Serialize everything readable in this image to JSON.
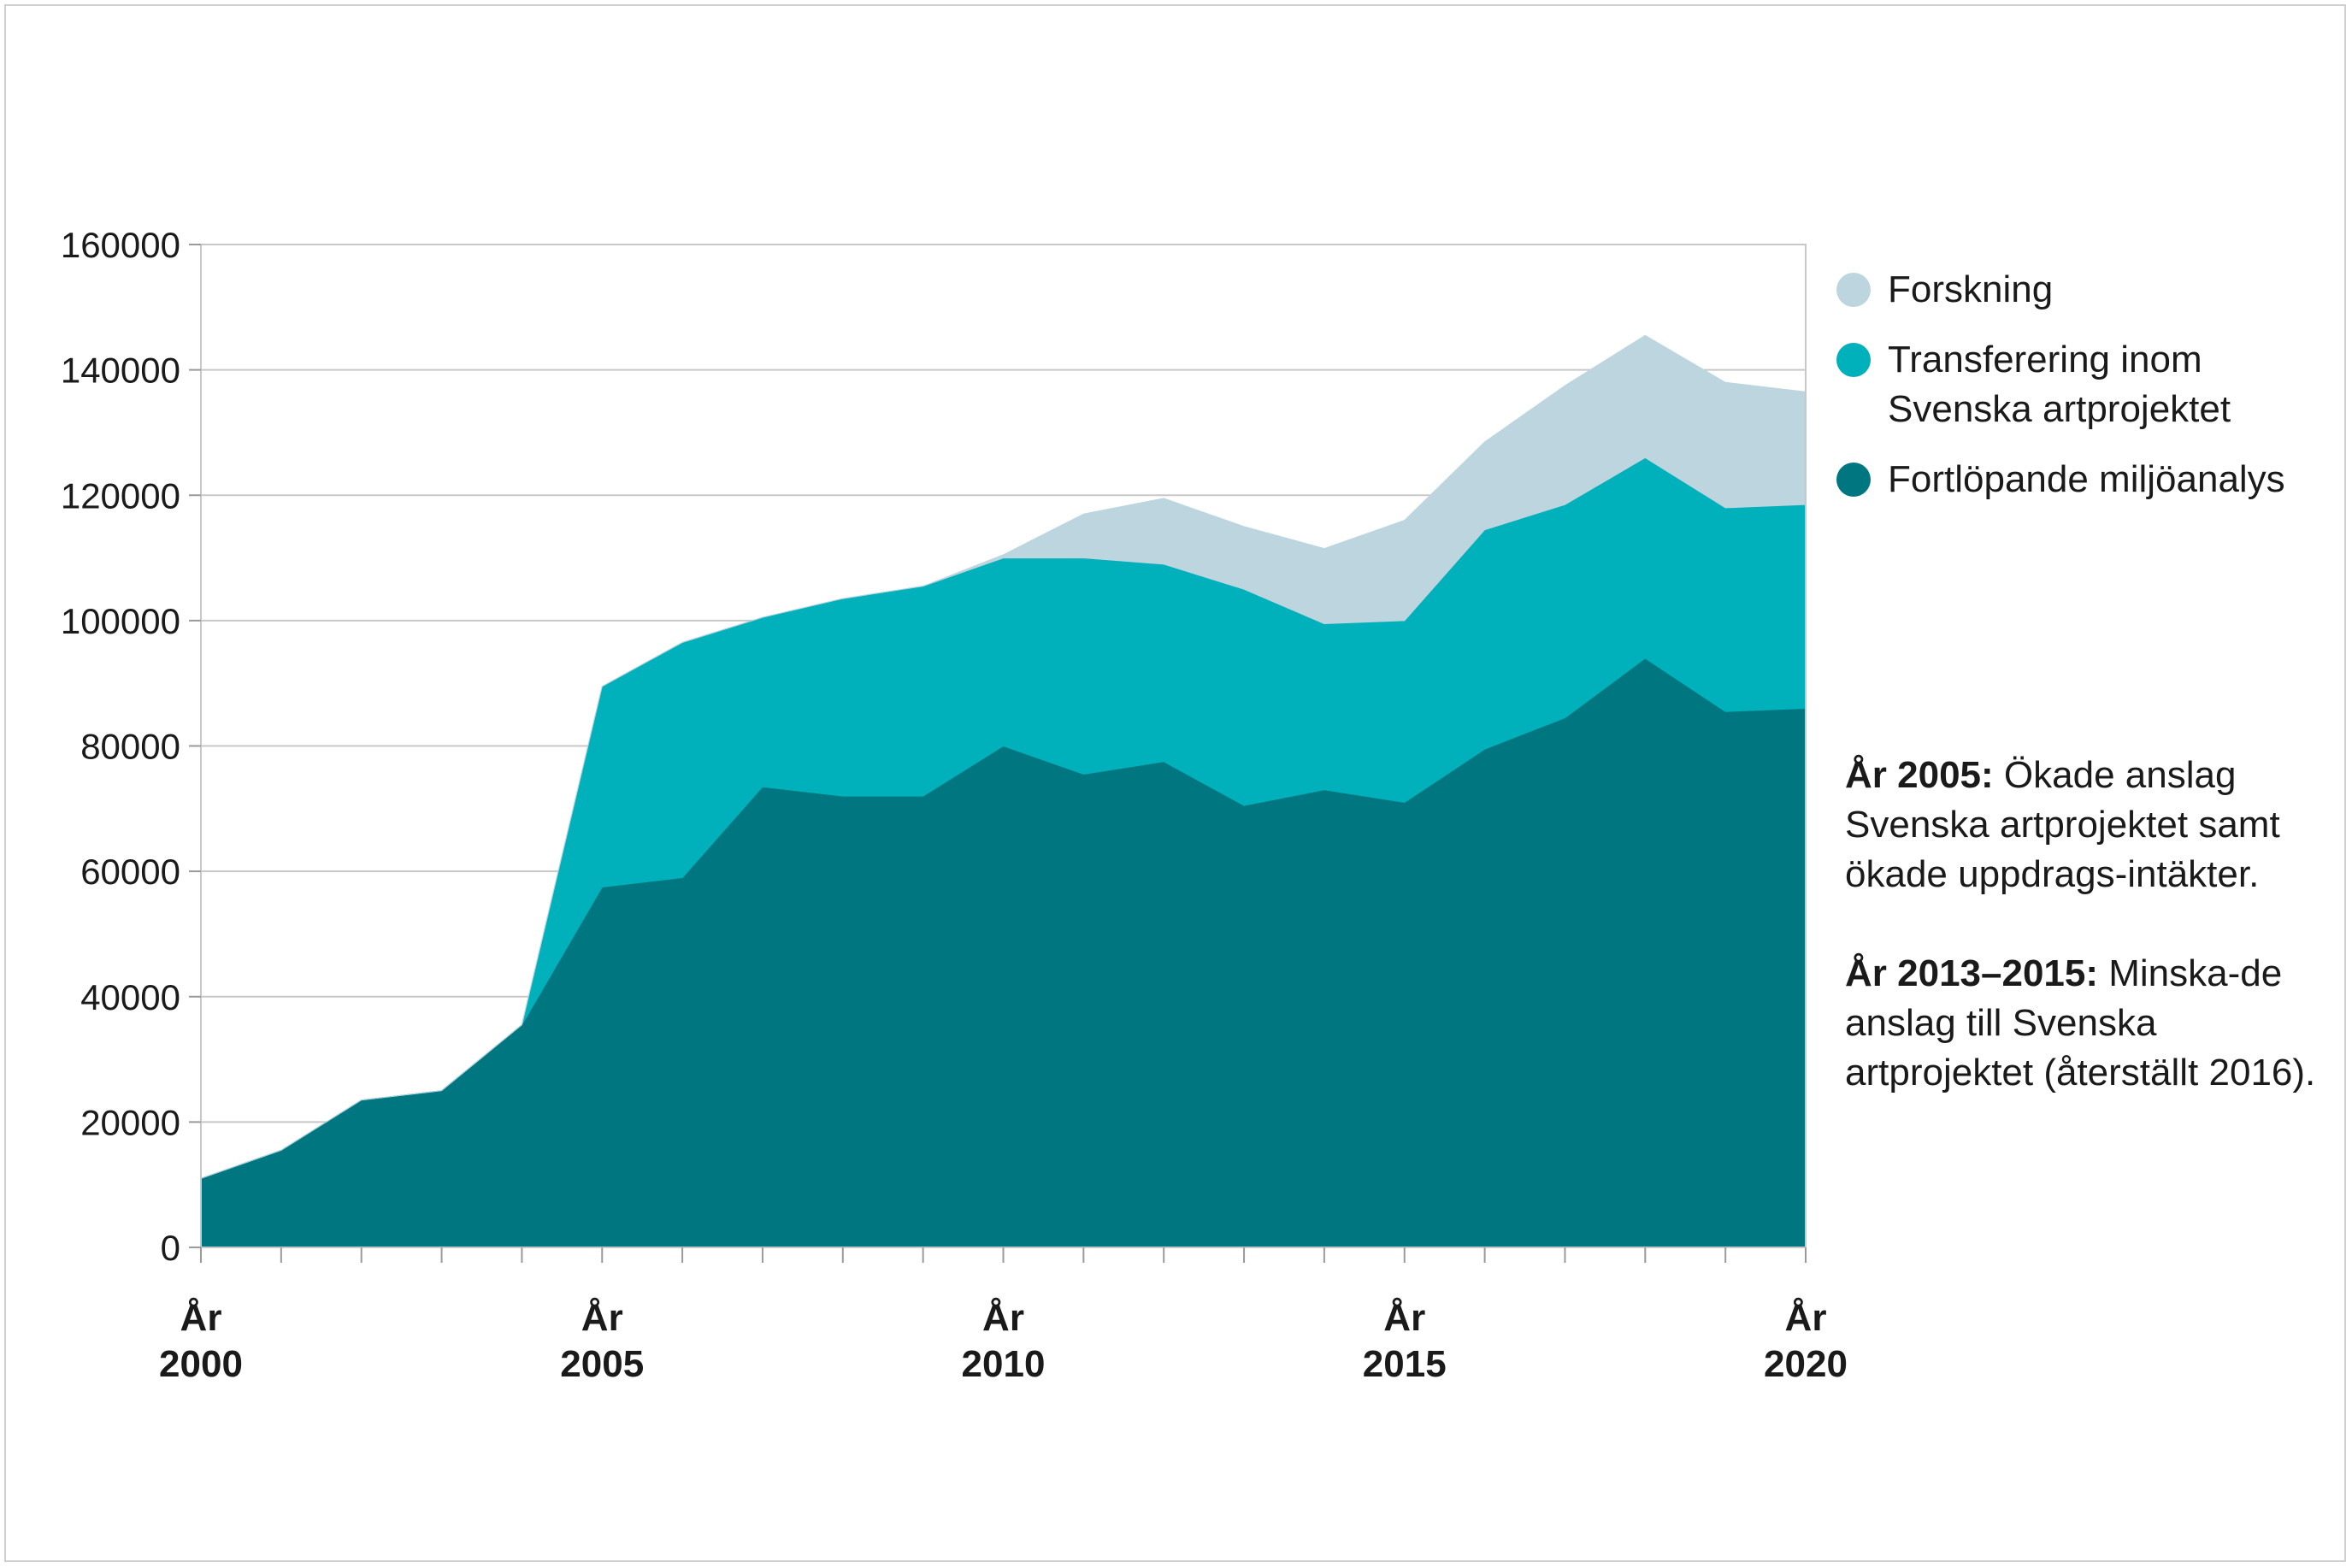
{
  "chart_data": {
    "type": "area",
    "stacked": true,
    "title": "",
    "xlabel": "",
    "ylabel": "",
    "ylim": [
      0,
      160000
    ],
    "yticks": [
      0,
      20000,
      40000,
      60000,
      80000,
      100000,
      120000,
      140000,
      160000
    ],
    "x": [
      2000,
      2001,
      2002,
      2003,
      2004,
      2005,
      2006,
      2007,
      2008,
      2009,
      2010,
      2011,
      2012,
      2013,
      2014,
      2015,
      2016,
      2017,
      2018,
      2019,
      2020
    ],
    "x_tick_labels": [
      {
        "year": 2000,
        "line1": "År",
        "line2": "2000"
      },
      {
        "year": 2005,
        "line1": "År",
        "line2": "2005"
      },
      {
        "year": 2010,
        "line1": "År",
        "line2": "2010"
      },
      {
        "year": 2015,
        "line1": "År",
        "line2": "2015"
      },
      {
        "year": 2020,
        "line1": "År",
        "line2": "2020"
      }
    ],
    "grid": true,
    "legend_position": "right",
    "series": [
      {
        "name": "Fortlöpande miljöanalys",
        "color": "#007780",
        "values": [
          11000,
          15500,
          23500,
          25000,
          35500,
          57500,
          59000,
          73500,
          72000,
          72000,
          80000,
          75500,
          77500,
          70500,
          73000,
          71000,
          79500,
          84500,
          94000,
          85500,
          86000
        ]
      },
      {
        "name": "Transferering inom Svenska artprojektet",
        "color": "#00b0ba",
        "values": [
          0,
          0,
          0,
          0,
          0,
          32000,
          37500,
          27000,
          31500,
          33500,
          30000,
          34500,
          31500,
          34500,
          26500,
          29000,
          35000,
          34000,
          32000,
          32500,
          32500
        ]
      },
      {
        "name": "Forskning",
        "color": "#bcd5de",
        "values": [
          0,
          0,
          0,
          0,
          0,
          0,
          0,
          0,
          0,
          0,
          500,
          7000,
          10500,
          10000,
          12000,
          16000,
          14000,
          19000,
          19500,
          20000,
          18000
        ]
      }
    ]
  },
  "legend": {
    "items": [
      {
        "label": "Forskning",
        "color": "#bcd5de"
      },
      {
        "label": "Transferering inom Svenska artprojektet",
        "color": "#00b0ba"
      },
      {
        "label": "Fortlöpande miljöanalys",
        "color": "#007780"
      }
    ]
  },
  "notes": [
    {
      "title": "År 2005:",
      "text": " Ökade anslag Svenska artprojektet samt ökade uppdrags-intäkter."
    },
    {
      "title": "År 2013–2015:",
      "text": " Minska-de anslag till Svenska artprojektet (återställt 2016)."
    }
  ]
}
